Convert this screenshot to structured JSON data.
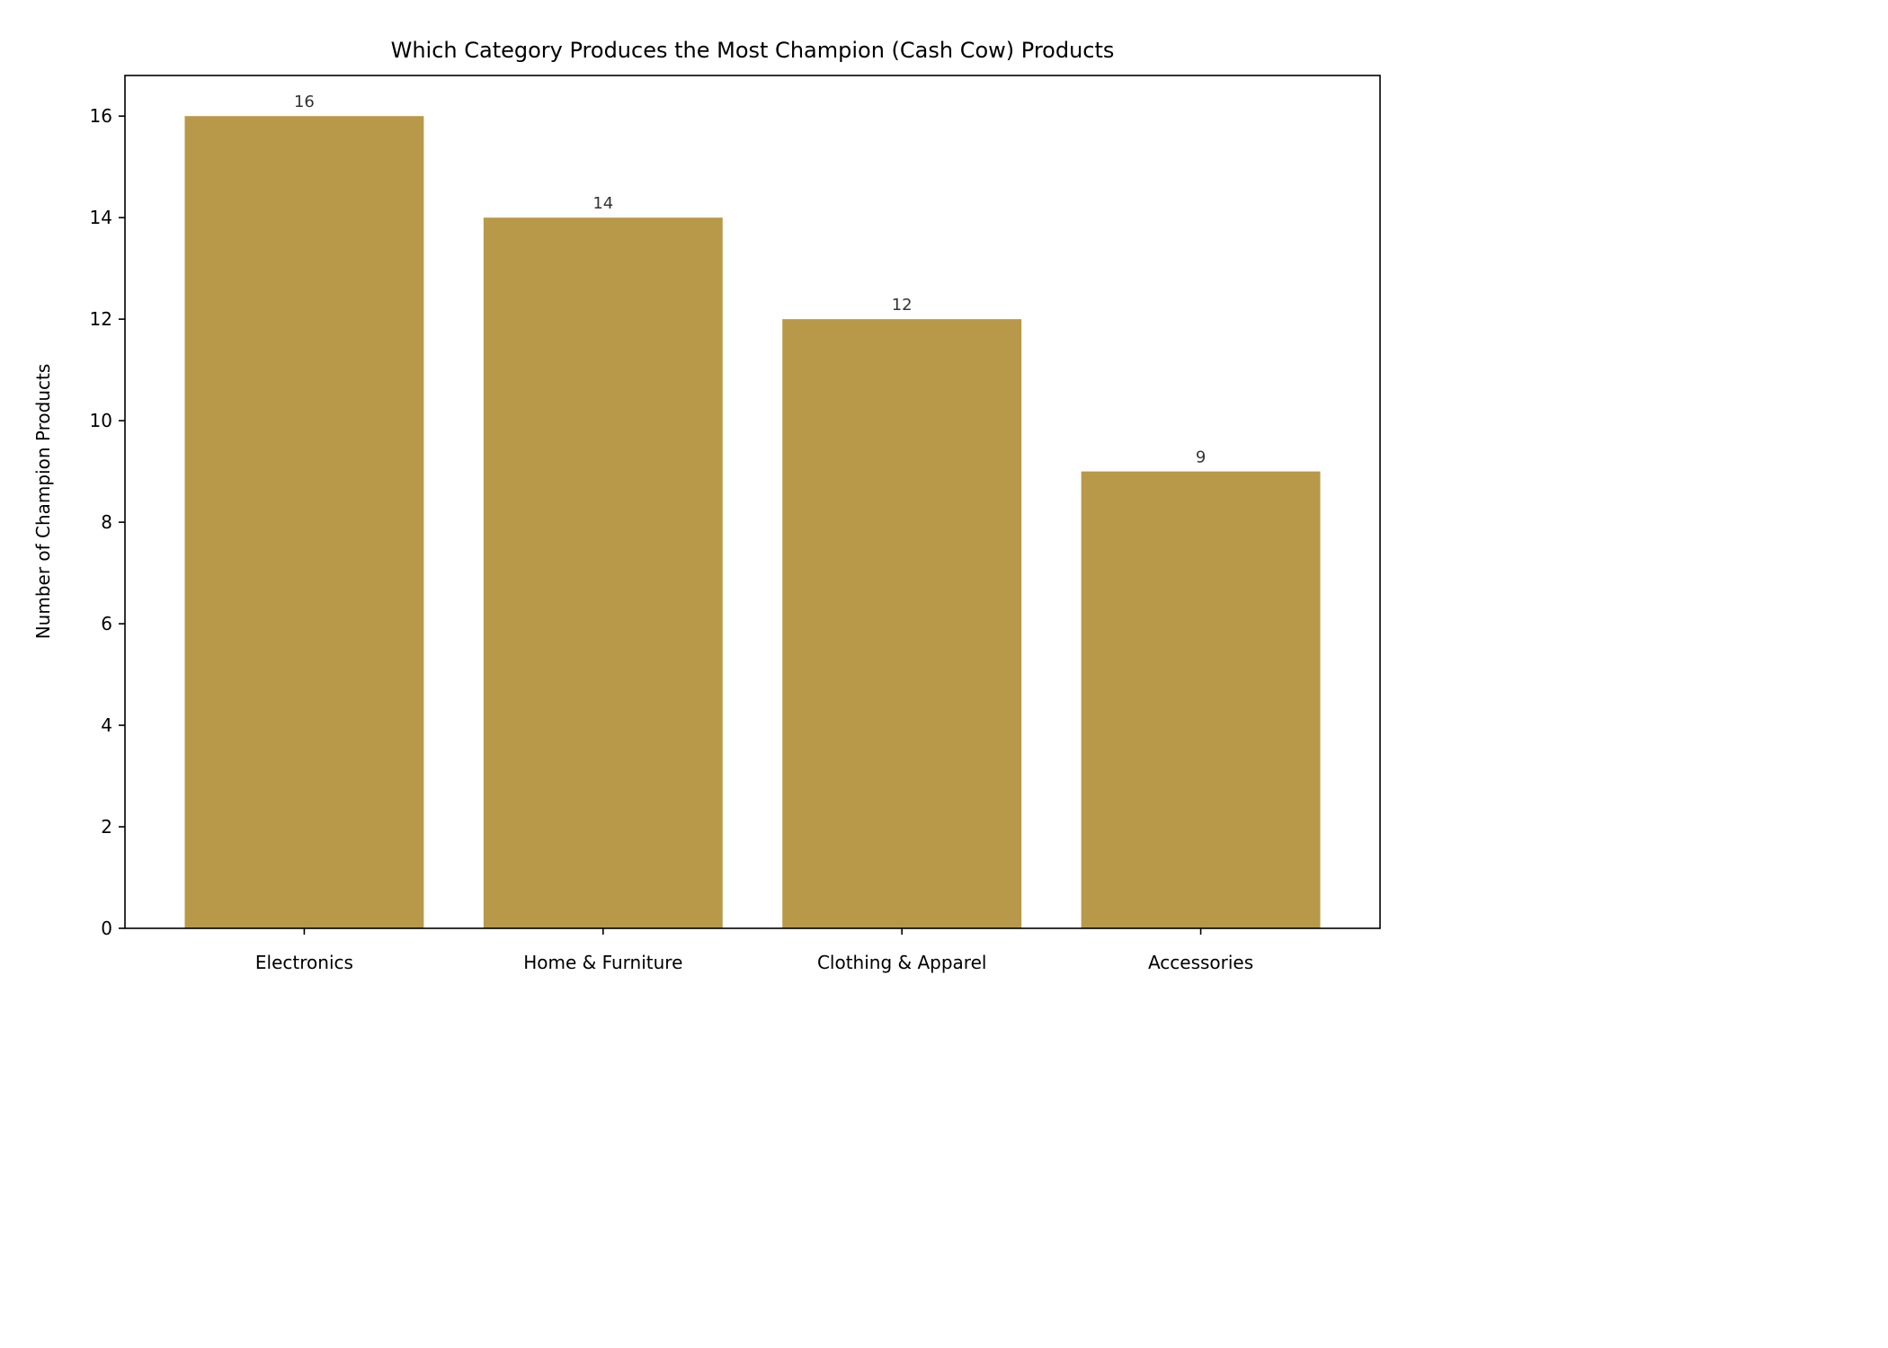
{
  "chart_data": {
    "type": "bar",
    "title": "Which Category Produces the Most Champion (Cash Cow) Products",
    "xlabel": "",
    "ylabel": "Number of Champion Products",
    "categories": [
      "Electronics",
      "Home & Furniture",
      "Clothing & Apparel",
      "Accessories"
    ],
    "values": [
      16,
      14,
      12,
      9
    ],
    "data_labels": [
      "16",
      "14",
      "12",
      "9"
    ],
    "ylim": [
      0,
      16.8
    ],
    "yticks": [
      0,
      2,
      4,
      6,
      8,
      10,
      12,
      14,
      16
    ],
    "bar_color": "#b8994a",
    "grid": false,
    "legend": "none"
  }
}
